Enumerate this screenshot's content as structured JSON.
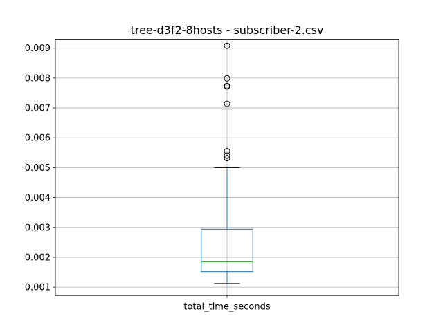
{
  "chart_data": {
    "type": "box",
    "title": "tree-d3f2-8hosts - subscriber-2.csv",
    "categories": [
      "total_time_seconds"
    ],
    "ylim": [
      0.00072,
      0.00928
    ],
    "yticks": [
      0.001,
      0.002,
      0.003,
      0.004,
      0.005,
      0.006,
      0.007,
      0.008,
      0.009
    ],
    "ytick_labels": [
      "0.001",
      "0.002",
      "0.003",
      "0.004",
      "0.005",
      "0.006",
      "0.007",
      "0.008",
      "0.009"
    ],
    "grid": true,
    "series": [
      {
        "whisker_low": 0.00112,
        "q1": 0.00152,
        "median": 0.00185,
        "q3": 0.00294,
        "whisker_high": 0.005,
        "fliers": [
          0.00532,
          0.0054,
          0.00555,
          0.00714,
          0.00772,
          0.00774,
          0.00799,
          0.00908
        ]
      }
    ]
  }
}
